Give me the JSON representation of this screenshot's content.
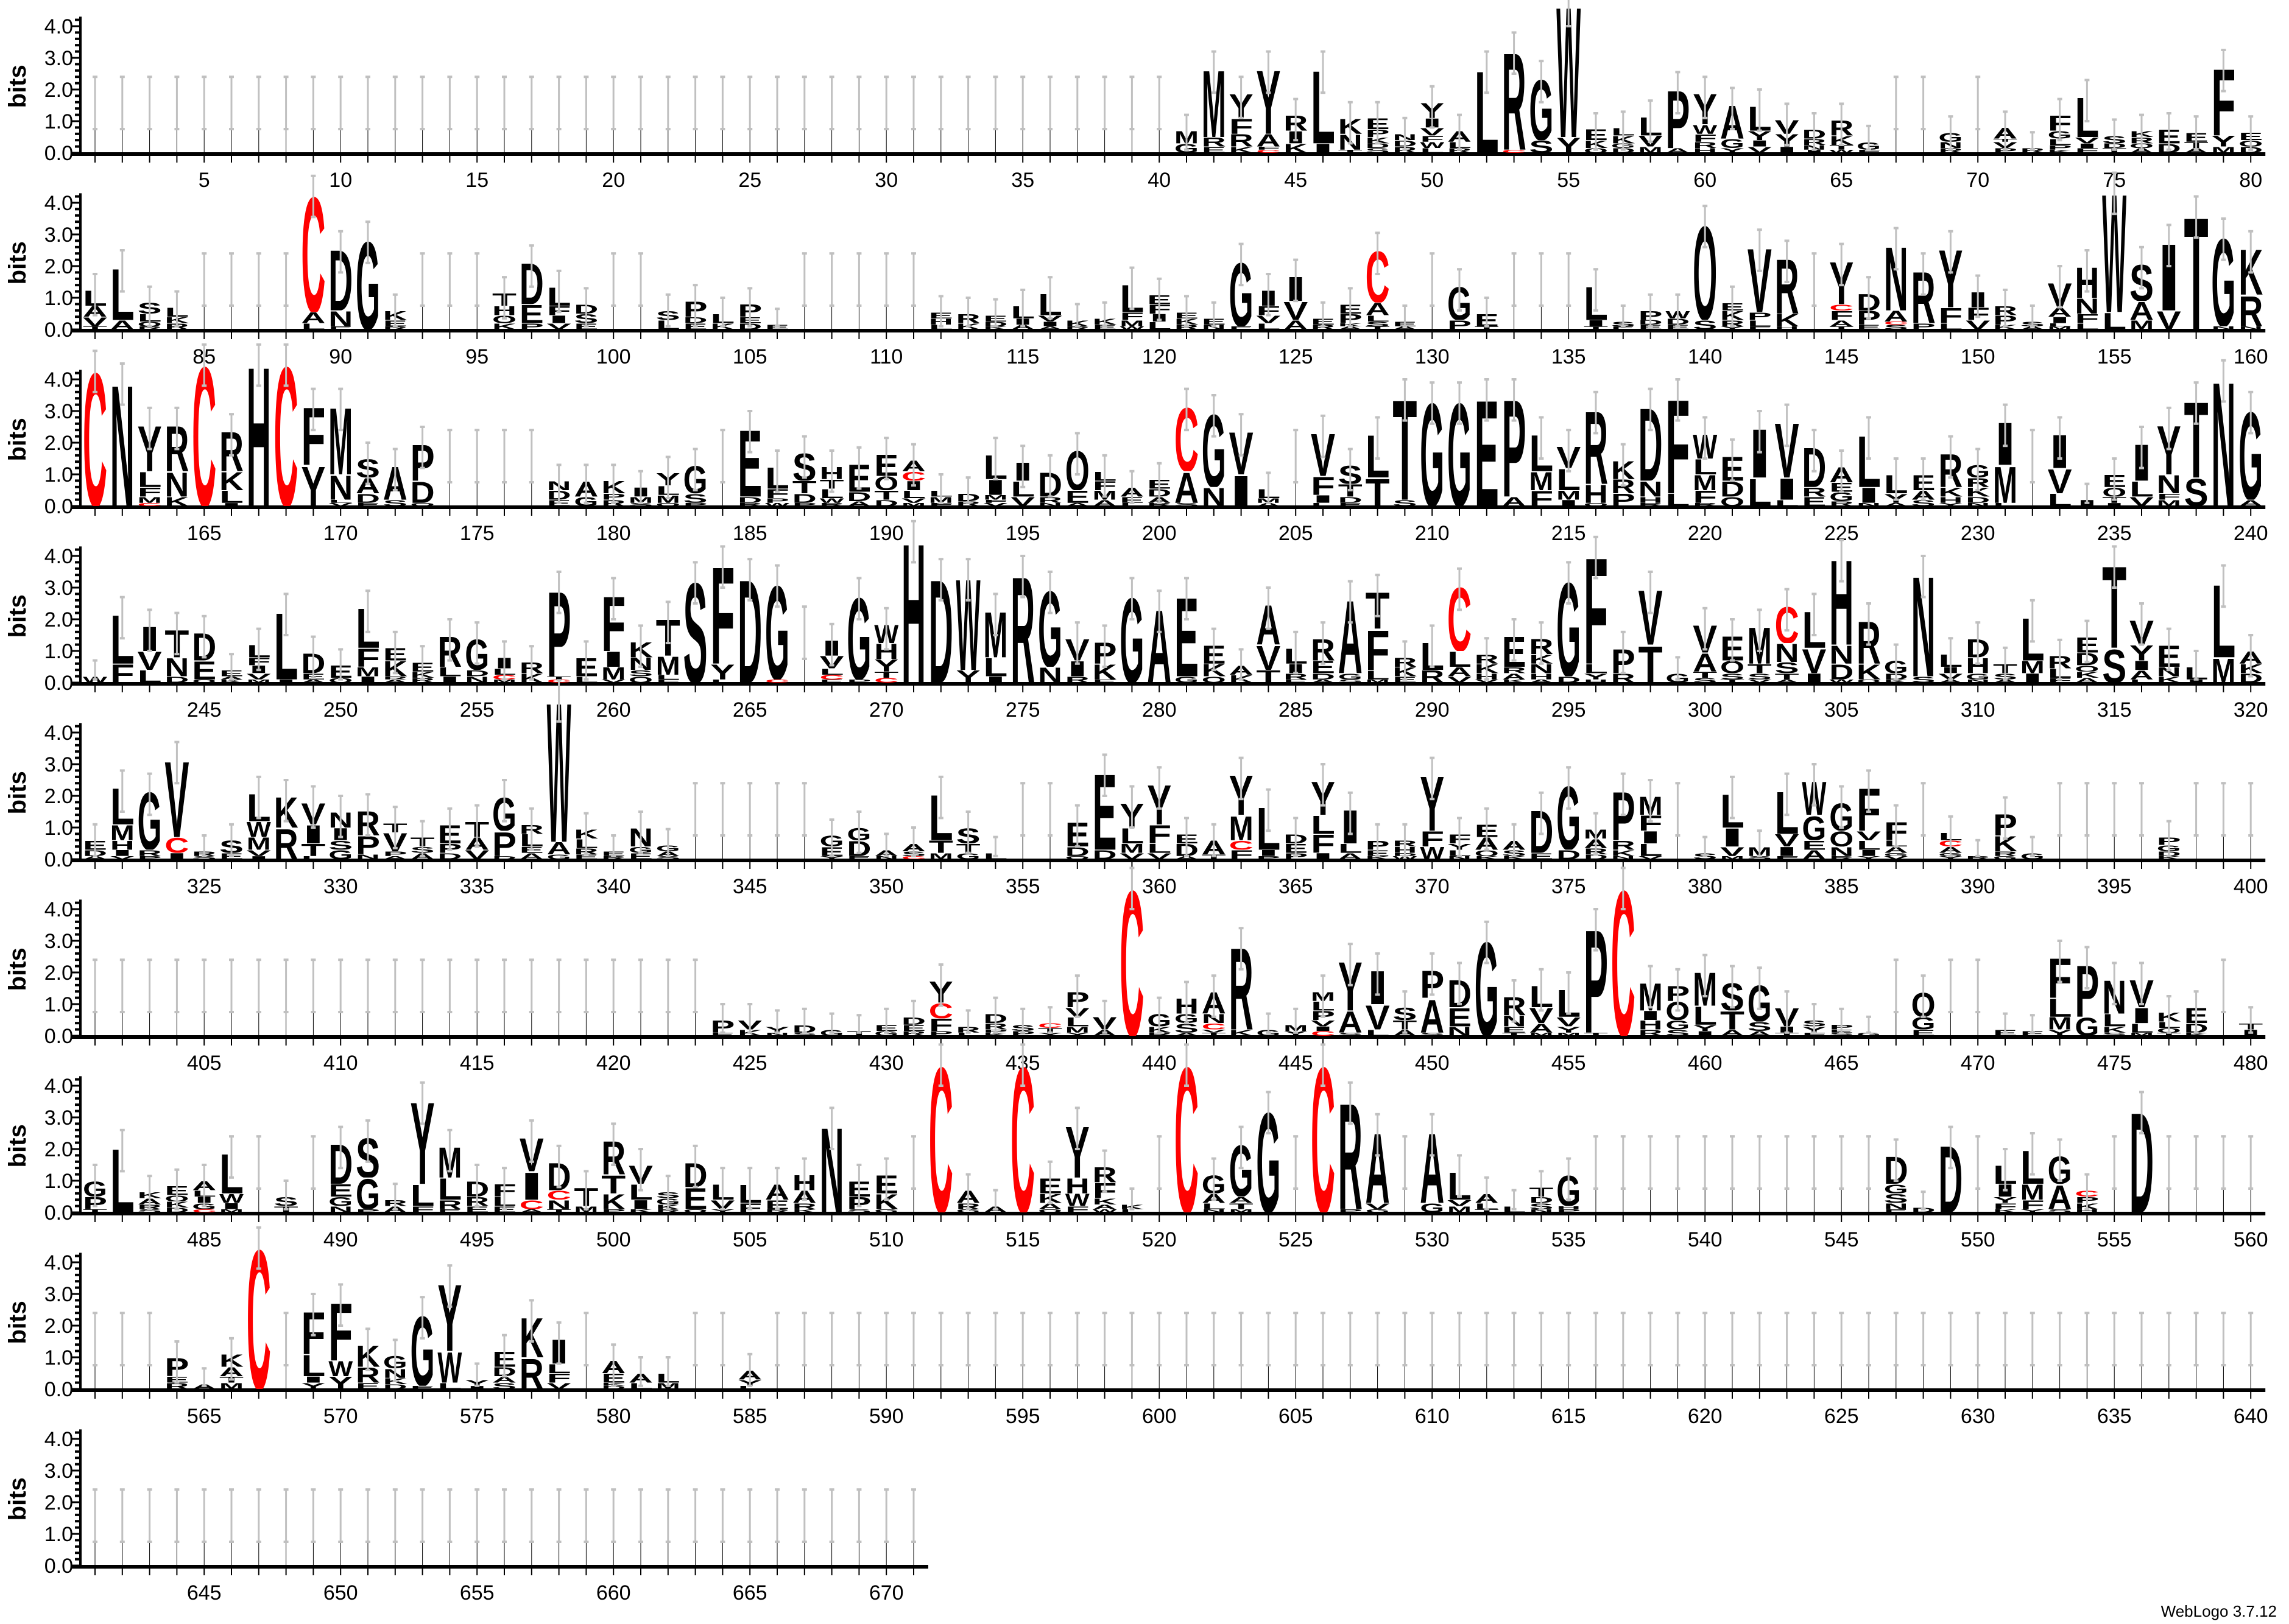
{
  "chart_data": {
    "type": "sequence-logo",
    "title": "",
    "ylabel": "bits",
    "ylim": [
      0,
      4.32
    ],
    "yticks": [
      "0.0",
      "1.0",
      "2.0",
      "3.0",
      "4.0"
    ],
    "positions": 671,
    "positions_per_row": 80,
    "xtick_every": 5,
    "color_scheme": {
      "C": "#ff0000",
      "default": "#000000"
    },
    "errorbar_color": "#c0c0c0",
    "stacks_note": "letters listed top to bottom with height in bits",
    "stacks": {
      "41": "M0.4 G0.3",
      "42": "M2.2 R0.3 E0.2",
      "43": "Y0.8 F0.5 R0.4 K0.2",
      "44": "Y2.1 A0.4 F0.1 C0.1",
      "45": "R0.5 I0.4 K0.3",
      "46": "L2.4 I0.3",
      "47": "K0.5 N0.5 T0.1",
      "48": "E0.35 P0.25 K0.2 D0.15 S0.15",
      "49": "N0.2 D0.2 R0.2",
      "50": "Y0.5 I0.3 V0.25 F0.2 W0.2 L0.15",
      "51": "A0.35 L0.2 R0.15",
      "52": "L2.7",
      "53": "R3.2 C0.1",
      "54": "G2.0 S0.4",
      "55": "W4.3 Y0.5",
      "56": "E0.35 K0.25 Q0.15",
      "57": "L0.25 K0.25 G0.15 D0.15",
      "58": "L0.6 V0.35 M0.2",
      "59": "P1.9 A0.15",
      "60": "Y1.0 W0.3 F0.25 R0.2 H0.15",
      "61": "A1.1 G0.3 Y0.15",
      "62": "L0.8 Y0.3 I0.2 V0.2",
      "63": "V0.45 Y0.4 I0.2",
      "64": "D0.3 R0.2 N0.15 I0.1",
      "65": "R0.5 K0.3 T0.15 W0.1",
      "66": "G0.25 F0.1",
      "69": "G0.3 N0.2 R0.15",
      "71": "A0.35 T0.1 V0.2 P0.15",
      "72": "R0.15",
      "73": "F0.5 G0.25 L0.2 P0.15 K0.1",
      "74": "L1.3 V0.2 I0.15 F0.15",
      "75": "S0.25 D0.15 T0.15",
      "76": "K0.2 R0.2 Q0.15 A0.15",
      "77": "E0.45 D0.3",
      "78": "E0.3 T0.2 A0.15",
      "79": "F2.2 Y0.35 M0.2",
      "80": "E0.25 Q0.2 D0.2",
      "81": "L0.5 A0.35 V0.3 T0.1",
      "82": "L1.7 A0.3",
      "83": "S0.35 L0.25 Q0.15 R0.1",
      "84": "L0.3 K0.2 R0.2",
      "89": "C3.8 A0.35 L0.2",
      "90": "D2.0 N0.5 E0.1",
      "91": "G2.9",
      "92": "K0.3 E0.2 R0.1",
      "96": "T0.4 H0.3 Q0.25 K0.2",
      "97": "D1.35 E0.6 P0.2",
      "98": "L0.6 F0.3 I0.25 V0.2",
      "99": "D0.3 S0.3 E0.2",
      "102": "S0.3 L0.3",
      "103": "P0.5 D0.2 E0.2",
      "104": "L0.3 K0.2",
      "105": "P0.4 E0.2 D0.2",
      "106": "E0.15",
      "112": "E0.2 H0.2 L0.15",
      "113": "R0.3 K0.2",
      "114": "E0.2 D0.15 K0.1",
      "115": "L0.4 I0.2 A0.15",
      "116": "L0.7 V0.2 I0.15 A0.1",
      "117": "K0.2 R0.1",
      "118": "K0.2 E0.15",
      "119": "L0.9 F0.25 M0.2 W0.1",
      "120": "E0.3 F0.3 I0.25 L0.25",
      "121": "E0.2 K0.2 R0.15",
      "122": "E0.2 N0.15",
      "123": "G2.1 E0.1",
      "124": "I0.5 F0.3 V0.25 L0.2",
      "125": "I0.8 V0.6 A0.3",
      "126": "E0.2 R0.15",
      "127": "E0.3 P0.3 K0.1 A0.1",
      "128": "C1.7 A0.4 L0.2 S0.15 T0.1",
      "129": "E0.15 A0.1",
      "131": "G1.1 P0.3",
      "132": "E0.4 T0.1",
      "136": "L1.1 I0.2 T0.1",
      "137": "S0.15 E0.1",
      "138": "P0.3 D0.15 E0.15",
      "139": "W0.25 D0.2 E0.15",
      "140": "Q3.1 S0.3",
      "141": "E0.25 K0.3 R0.2 Y0.1",
      "142": "V2.1 P0.25 L0.2 F0.1",
      "143": "R1.8 K0.4 H0.1",
      "145": "Y1.4 C0.2 F0.3 A0.2 T0.1",
      "146": "D0.55 P0.45 E0.15",
      "147": "N2.1 A0.35 C0.1 S0.15",
      "148": "R1.7 P0.2",
      "149": "Y1.9 F0.5 L0.2",
      "150": "I0.5 F0.4 V0.3",
      "151": "R0.3 P0.3 K0.15",
      "152": "S0.15 A0.1",
      "153": "V0.8 A0.3 I0.2 L0.1 M0.1",
      "154": "H1.0 N0.5 F0.3 L0.2",
      "155": "W3.9 L0.55",
      "156": "S1.2 A0.6 M0.3",
      "157": "I2.2 V0.6",
      "158": "T3.7",
      "159": "G2.9 N0.1",
      "160": "K1.5 R1.0 N0.1",
      "161": "C4.4",
      "162": "N4.0",
      "163": "Y1.5 L0.5 F0.3 M0.2 C0.1",
      "164": "R1.5 N0.8 K0.3",
      "165": "C4.6",
      "166": "R1.3 K0.6 L0.4 I0.1",
      "167": "H4.6",
      "168": "C4.6",
      "169": "F1.9 Y1.3",
      "170": "M2.2 N0.8 L0.1 V0.1",
      "171": "S0.6 A0.5 D0.3 E0.1",
      "172": "A1.1 S0.2",
      "173": "P1.2 D0.7 Q0.1",
      "178": "N0.3 D0.3 E0.2",
      "179": "A0.5 G0.3",
      "180": "K0.4 P0.2 R0.2",
      "181": "I0.3 M0.2 S0.1",
      "182": "Y0.4 L0.3 M0.25 Q0.1",
      "183": "G0.9 S0.3 P0.1",
      "185": "E2.2 D0.2 R0.1",
      "186": "L0.7 F0.3 P0.15 W0.1",
      "187": "S0.9 T0.4 D0.3 P0.1",
      "188": "H0.4 T0.3 L0.3 W0.15 R0.1",
      "189": "E0.9 D0.3 A0.15",
      "190": "E0.7 Q0.45 T0.3 D0.2",
      "191": "A0.35 C0.3 I0.3 L0.25 V0.15 M0.1",
      "192": "L0.2 M0.2 F0.1",
      "193": "D0.25 R0.15",
      "194": "L0.8 I0.5 M0.15 F0.1 V0.1",
      "195": "I0.6 L0.5 V0.3",
      "196": "D0.8 R0.2 N0.1",
      "197": "Q1.3 E0.4 A0.1",
      "198": "L0.3 F0.3 M0.3 A0.2",
      "199": "A0.3 E0.2 L0.1",
      "200": "E0.3 D0.25 A0.2 R0.1",
      "201": "C2.1 A1.0 S0.1",
      "202": "G2.4 N0.6",
      "203": "V1.4 I1.0",
      "204": "L0.3 M0.15 A0.1",
      "206": "V1.4 F0.6 I0.25 L0.1",
      "207": "S0.6 T0.4 D0.2 E0.1",
      "208": "L1.4 T0.9",
      "209": "T3.3 S0.2",
      "210": "G3.4",
      "211": "G3.4",
      "212": "E3.5",
      "213": "P3.2 A0.3",
      "214": "L1.2 M0.6 F0.5",
      "215": "V0.7 L0.7 M0.3 I0.2",
      "216": "R2.4 H0.6 Q0.1",
      "217": "K0.6 R0.45 P0.4",
      "218": "D2.4 N0.5 H0.2 R0.1",
      "219": "F3.1 L0.4",
      "220": "W0.8 L0.5 M0.5 F0.4 R0.1",
      "221": "E0.8 D0.5 Q0.3",
      "222": "I1.6 L0.9",
      "223": "V1.8 I0.7 L0.2",
      "224": "D1.3 R0.3 E0.3",
      "225": "A0.5 E0.3 G0.3 R0.15",
      "226": "L1.7 I0.5 N0.1",
      "227": "L0.6 Y0.3 A0.1",
      "228": "E0.5 A0.3 S0.2",
      "229": "R1.1 K0.3 H0.2 Y0.1",
      "230": "G0.4 R0.3 K0.3 D0.2 N0.1",
      "231": "I1.4 M1.2 L0.1",
      "233": "I1.1 V0.8 L0.4",
      "234": "I0.2",
      "235": "E0.4 Q0.3 T0.2 I0.1",
      "236": "I1.2 L0.5 V0.3",
      "237": "Y1.6 N0.6 F0.2 M0.2",
      "238": "T2.5 S0.9",
      "239": "N4.1",
      "240": "G2.9 A0.2",
      "241": "W0.2",
      "242": "L1.6 F0.6",
      "243": "I0.8 V0.6 L0.4",
      "244": "T0.9 N0.6 D0.2",
      "245": "D0.9 E0.6 Q0.1",
      "246": "E0.2 A0.1 K0.1",
      "247": "L0.4 F0.25 I0.25 V0.2 M0.1",
      "248": "L2.2 I0.1",
      "249": "D0.65 E0.2 A0.1",
      "250": "E0.4 Q0.15",
      "251": "L1.3 F0.6 M0.3 I0.2",
      "252": "E0.4 K0.5 R0.1 A0.1",
      "253": "E0.3 K0.2 R0.15",
      "254": "R1.0 L0.3 I0.2",
      "255": "G1.0 D0.2 N0.2",
      "256": "I0.35 L0.2 C0.15 M0.1",
      "257": "R0.35 K0.3",
      "258": "P2.8 T0.1 C0.1",
      "259": "E0.6 L0.2",
      "260": "F1.8 I0.5 M0.4 V0.1",
      "261": "K0.5 N0.4 S0.2 Q0.2",
      "262": "T1.2 M0.6 L0.15 F0.1",
      "263": "S3.3",
      "264": "F3.2 Y0.5 L0.1",
      "265": "D3.4",
      "266": "G3.1 C0.1",
      "268": "I0.5 V0.4 L0.2 C0.15 E0.1",
      "269": "G2.7 P0.1",
      "270": "W0.6 H0.5 Y0.4 T0.2 C0.15",
      "271": "H4.6",
      "272": "D3.4",
      "273": "W3.0 Y0.4",
      "274": "M1.5 L0.6 I0.2",
      "275": "R3.5",
      "276": "G2.5 N0.5",
      "277": "V0.7 I0.5 R0.2",
      "278": "P0.7 K0.5 E0.1",
      "279": "G2.8",
      "280": "A2.4",
      "281": "E2.6 G0.2",
      "282": "E0.6 K0.4 Q0.2",
      "283": "A0.3 K0.25",
      "284": "A1.3 V0.8 T0.4",
      "285": "L0.5 I0.3 R0.2 E0.1",
      "286": "R0.7 E0.4 D0.2 A0.1",
      "287": "A2.4 G0.2 S0.1",
      "288": "T1.2 F1.3 L0.3 M0.1",
      "289": "R0.3 K0.3 E0.2",
      "290": "L0.9 R0.4",
      "291": "C2.1 L0.5 A0.3 V0.2",
      "292": "R0.3 K0.3 H0.2 V0.1",
      "293": "E1.0 R0.2 A0.2 K0.1",
      "294": "R0.5 K0.3 N0.3 H0.2 A0.1",
      "295": "G3.1 D0.2",
      "296": "F3.5 L0.3 Y0.2 H0.1",
      "297": "P0.8 R0.3",
      "298": "V1.8 T1.2",
      "299": "G0.3",
      "300": "V0.9 A0.6 T0.2 S0.15",
      "301": "E0.8 Q0.4 S0.2 T0.1",
      "302": "M1.2 T0.3 S0.2 V0.1",
      "303": "C1.2 N0.6 S0.35 T0.2 A0.1",
      "304": "L1.2 V0.8 I0.3",
      "305": "H2.8 N0.6 D0.5 W0.1",
      "306": "R1.4 K0.5 Q0.1",
      "307": "G0.4 D0.2 K0.1",
      "308": "N3.3 S0.2",
      "309": "L0.4 I0.2 V0.2 A0.1",
      "310": "D0.6 H0.5 G0.2 N0.1",
      "311": "T0.3 S0.2 A0.1",
      "312": "L1.4 M0.4 I0.3",
      "313": "R0.4 L0.3 F0.15",
      "314": "E0.5 D0.4 Q0.2 K0.2 A0.15",
      "315": "T2.7 S1.1",
      "316": "V0.8 Y0.5 I0.3 A0.3 L0.1",
      "317": "E0.7 N0.3 K0.2",
      "318": "L0.4 I0.1",
      "319": "L2.4 M0.8",
      "320": "A0.4 K0.3 D0.3",
      "321": "E0.3 D0.2 A0.1",
      "322": "L1.2 M0.5 H0.3 I0.2 V0.1",
      "323": "G1.9 R0.2 P0.1",
      "324": "V2.5 C0.5 I0.2",
      "325": "R0.15 S0.1",
      "326": "S0.4 E0.2",
      "327": "L0.9 W0.5 M0.4 V0.2 I0.1",
      "328": "K1.0 R1.0",
      "329": "V0.7 I0.6 T0.4 L0.1",
      "330": "N0.5 I0.4 S0.3 G0.3",
      "331": "R0.8 P0.6 N0.15",
      "332": "T0.3 V0.6 P0.15 A0.1",
      "333": "T0.3 S0.2 A0.2",
      "334": "E0.6 P0.3 D0.2",
      "335": "T0.5 A0.4 V0.3",
      "336": "G1.1 P0.8 D0.1",
      "337": "R0.3 L0.4 E0.2 A0.2",
      "338": "W4.6 A0.4 G0.15",
      "339": "K0.3 L0.3 R0.2 E0.15",
      "340": "E0.15 R0.1",
      "341": "N0.6 G0.2 E0.2",
      "342": "G0.2 A0.15 S0.1",
      "348": "G0.35 E0.3 Y0.1",
      "349": "G0.4 D0.5 E0.1",
      "350": "A0.2 N0.1",
      "351": "A0.25 S0.15 C0.1",
      "352": "L1.5 T0.4 M0.2",
      "353": "S0.5 T0.3 G0.2",
      "354": "L0.2",
      "357": "E0.8 D0.3 Q0.1",
      "358": "E2.5 D0.3",
      "359": "Y0.8 L0.5 M0.3 V0.2",
      "360": "Y1.3 F0.6 L0.3 V0.2",
      "361": "E0.3 D0.4 A0.1",
      "362": "A0.45 T0.15",
      "363": "Y1.3 M0.8 C0.3 F0.3",
      "364": "L1.4 I0.2 P0.1",
      "365": "D0.3 E0.3 P0.2",
      "366": "Y1.1 L0.6 F0.6 I0.2",
      "367": "I1.1 L0.3 A0.2",
      "368": "P0.3 E0.2 K0.1",
      "369": "R0.2 H0.2 D0.1 W0.1",
      "370": "Y1.8 F0.5 W0.4",
      "371": "F0.3 Y0.2 L0.2 N0.1",
      "372": "E0.4 A0.4 Q0.2 K0.1",
      "373": "A0.3 S0.2 K0.1",
      "374": "D1.4 E0.2",
      "375": "G2.1 D0.3",
      "376": "M0.3 A0.3 R0.2 D0.15",
      "377": "P1.6 R0.3 K0.2 N0.1",
      "378": "M0.6 F0.5 I0.4 L0.4 V0.1",
      "380": "S0.2",
      "381": "L1.1 I0.6 V0.3 M0.1",
      "382": "M0.3 S0.1",
      "383": "L1.4 V0.4 I0.3 F0.1",
      "384": "W1.1 G0.8 E0.3 A0.3",
      "385": "G0.9 Q0.5 N0.3 R0.1",
      "386": "F1.4 V0.3 L0.3 I0.2 Y0.1",
      "387": "F0.6 L0.2 A0.2 G0.1 V0.1",
      "389": "L0.25 C0.2 A0.2 G0.1 Y0.1",
      "390": "R0.1",
      "391": "P0.7 K0.5 R0.15 G0.1",
      "392": "G0.2",
      "397": "P0.25 G0.2 D0.15 K0.1",
      "424": "P0.4 E0.1",
      "425": "V0.3 K0.2",
      "426": "Y0.2 N0.1",
      "427": "D0.25 S0.1",
      "428": "G0.2",
      "429": "T0.15",
      "430": "E0.2 G0.15",
      "431": "D0.25 E0.2 R0.15",
      "432": "Y0.7 C0.5 F0.4 P0.15",
      "433": "R0.2 L0.1",
      "434": "D0.3 R0.2 P0.1 K0.1",
      "435": "S0.2 P0.15",
      "436": "C0.15 T0.15 Y0.1",
      "437": "P0.5 V0.3 L0.3 M0.2 Y0.1",
      "438": "V0.4 A0.2",
      "439": "C4.8",
      "440": "G0.4 K0.2 R0.1",
      "441": "H0.5 G0.3 S0.3 A0.1",
      "442": "A0.7 N0.3 C0.2 V0.1 T0.1",
      "443": "R2.7 K0.2",
      "444": "G0.2",
      "445": "M0.2 Y0.15",
      "446": "M0.3 L0.3 P0.3 V0.2 I0.15 C0.15",
      "447": "Y1.6 A0.7 S0.1",
      "448": "I1.1 V0.8 L0.2",
      "449": "S0.4 T0.3 A0.2",
      "450": "P0.9 A1.1 S0.1",
      "451": "D0.9 E0.6 N0.3",
      "452": "G3.1",
      "453": "R0.6 N0.35 E0.2 T0.1",
      "454": "L0.7 V0.5 A0.3 M0.1",
      "455": "L0.9 V0.3 Y0.2 M0.1",
      "456": "P3.4 T0.1",
      "457": "C4.8",
      "458": "M0.9 I0.3 H0.3 R0.2",
      "459": "P0.5 Q0.6 G0.3 S0.2",
      "460": "M1.1 L0.6 Y0.2 I0.15",
      "461": "S0.9 T0.6 A0.2",
      "462": "G1.2 S0.3 A0.15",
      "463": "V0.6 I0.2 T0.1",
      "464": "S0.2 Y0.2 F0.1",
      "465": "P0.15 E0.1 S0.1",
      "466": "G0.1",
      "468": "Q0.8 G0.4 E0.2",
      "471": "E0.2",
      "472": "E0.15",
      "473": "F1.3 L0.6 M0.4 Y0.2",
      "474": "P1.7 G0.6",
      "475": "N1.1 L0.4 K0.2 S0.1",
      "476": "V0.9 I0.5 L0.3 M0.1",
      "477": "K0.3 L0.2 Q0.15 T0.1",
      "478": "E0.5 D0.3 K0.1",
      "480": "T0.2 I0.2",
      "481": "G0.5 P0.4 T0.1",
      "482": "L2.1",
      "483": "K0.2 A0.2 R0.15 S0.1",
      "484": "E0.3 Q0.2 K0.2 D0.15",
      "485": "A0.3 L0.2 I0.2 G0.2 C0.1",
      "486": "L1.3 W0.3 I0.2 M0.1",
      "488": "S0.3 T0.2",
      "490": "D1.3 E0.4 G0.3 N0.2",
      "491": "S1.3 G1.0 P0.1",
      "492": "R0.2 A0.2",
      "493": "Y2.7 L0.7 F0.2",
      "494": "M1.0 L0.7 R0.3 E0.1",
      "495": "D0.5 R0.3 E0.2",
      "496": "F0.4 L0.3 E0.2",
      "497": "V1.1 I0.9 C0.3 A0.1",
      "498": "D0.9 C0.3 N0.3 T0.1",
      "499": "T0.6 M0.2",
      "500": "R1.1 T0.6 K0.5 P0.1",
      "501": "V0.6 L0.5 I0.3 K0.1",
      "502": "S0.2 G0.2 K0.15 R0.1",
      "503": "D0.8 E0.7 Q0.1",
      "504": "L0.5 V0.3 Y0.1",
      "505": "L0.6 F0.3",
      "506": "A0.5 E0.3 R0.1",
      "507": "H0.5 A0.4 R0.2 K0.1",
      "508": "N2.8",
      "509": "E0.5 P0.4 S0.1",
      "510": "E0.6 K0.5 G0.1",
      "512": "C4.8",
      "513": "A0.4 R0.2 G0.1",
      "514": "A0.2",
      "515": "C4.8",
      "516": "E0.5 K0.3 A0.2 Q0.1",
      "517": "Y1.7 H0.5 W0.4 F0.2",
      "518": "R0.5 F0.5 K0.2 A0.15 W0.1",
      "519": "K0.15 L0.1",
      "521": "C4.8",
      "522": "G0.6 A0.3 L0.2 N0.1",
      "523": "G1.7 A0.2 T0.2 M0.1",
      "524": "G3.3",
      "526": "C4.8",
      "527": "R3.5 P0.1",
      "528": "A2.3 V0.2 G0.1",
      "530": "A2.3 G0.3",
      "531": "L0.9 V0.2 M0.2",
      "532": "A0.3 L0.2 T0.1",
      "533": "L0.2",
      "534": "T0.3 D0.2 S0.2 N0.1",
      "535": "G1.0 H0.1 P0.1",
      "547": "D0.9 G0.3 S0.3 N0.2 E0.1",
      "548": "D0.15",
      "549": "D2.2",
      "551": "L0.6 I0.4 Y0.2 F0.2 K0.1",
      "552": "L1.1 M0.5 F0.3 Y0.1",
      "553": "G0.9 A0.8 S0.1",
      "554": "C0.2 P0.2 K0.2 H0.1",
      "556": "D3.3",
      "564": "P0.6 E0.2 R0.2",
      "565": "A0.15",
      "566": "K0.4 A0.3 T0.2 M0.2",
      "567": "C4.6",
      "569": "F1.4 L0.7 I0.2 Y0.2",
      "570": "F1.9 W0.5 Y0.4",
      "571": "K0.7 R0.5 E0.2",
      "572": "G0.4 N0.3 K0.2 D0.15",
      "573": "G2.3 E0.1",
      "574": "Y2.2 W1.0 L0.2",
      "575": "Y0.2 I0.1",
      "576": "E0.5 D0.3 A0.2 S0.2",
      "577": "K1.3 R1.0",
      "578": "I0.8 L0.3 F0.3 V0.2",
      "580": "A0.4 E0.3 K0.1 D0.1",
      "581": "A0.3 L0.2",
      "582": "L0.3 M0.2",
      "585": "A0.3 Y0.2 L0.1"
    }
  },
  "footer": {
    "label": "WebLogo 3.7.12"
  }
}
